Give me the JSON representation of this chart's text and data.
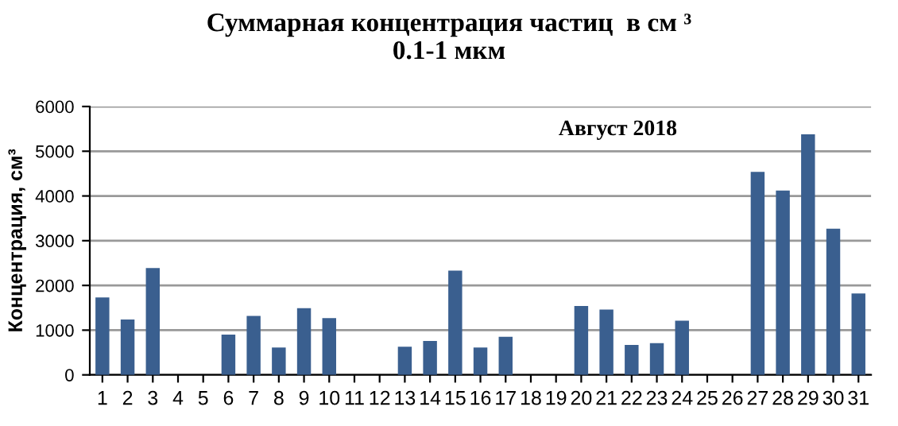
{
  "chart_data": {
    "type": "bar",
    "title": "Суммарная концентрация частиц  в см ³\n0.1-1 мкм",
    "ylabel": "Концентрация, см³",
    "annotations": [
      "Август 2018"
    ],
    "categories": [
      "1",
      "2",
      "3",
      "4",
      "5",
      "6",
      "7",
      "8",
      "9",
      "10",
      "11",
      "12",
      "13",
      "14",
      "15",
      "16",
      "17",
      "18",
      "19",
      "20",
      "21",
      "22",
      "23",
      "24",
      "25",
      "26",
      "27",
      "28",
      "29",
      "30",
      "31"
    ],
    "values": [
      1730,
      1240,
      2390,
      null,
      null,
      900,
      1320,
      610,
      1490,
      1270,
      null,
      null,
      630,
      760,
      2330,
      610,
      850,
      null,
      null,
      1540,
      1460,
      670,
      710,
      1210,
      null,
      null,
      4540,
      4120,
      5380,
      3270,
      1820
    ],
    "color": "#3a5f8f",
    "ylim": [
      0,
      6000
    ],
    "yticks": [
      0,
      1000,
      2000,
      3000,
      4000,
      5000,
      6000
    ],
    "grid": "y"
  }
}
